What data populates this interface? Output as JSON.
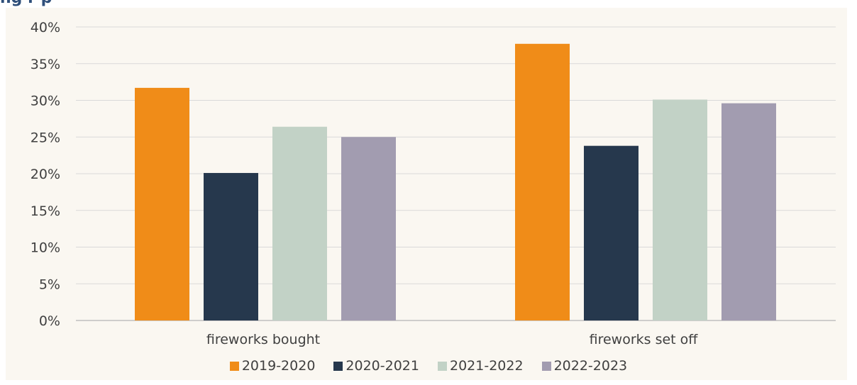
{
  "header": {
    "title_fragment": "ng r p"
  },
  "chart_data": {
    "type": "bar",
    "categories": [
      "fireworks bought",
      "fireworks set off"
    ],
    "series": [
      {
        "name": "2019-2020",
        "values": [
          31.7,
          37.7
        ],
        "color": "#f08c18"
      },
      {
        "name": "2020-2021",
        "values": [
          20.1,
          23.8
        ],
        "color": "#26384d"
      },
      {
        "name": "2021-2022",
        "values": [
          26.4,
          30.1
        ],
        "color": "#c2d2c6"
      },
      {
        "name": "2022-2023",
        "values": [
          25.0,
          29.6
        ],
        "color": "#a29cb0"
      }
    ],
    "y_ticks": [
      "0%",
      "5%",
      "10%",
      "15%",
      "20%",
      "25%",
      "30%",
      "35%",
      "40%"
    ],
    "ylim": [
      0,
      40
    ],
    "grid": true,
    "legend_position": "bottom",
    "title": "",
    "xlabel": "",
    "ylabel": ""
  }
}
